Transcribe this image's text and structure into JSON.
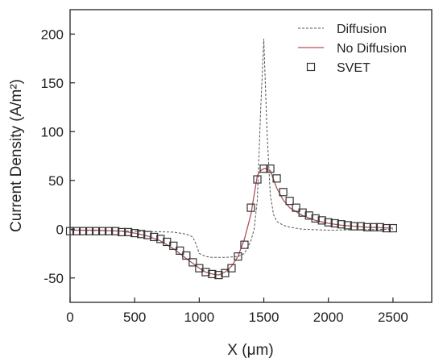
{
  "chart_data": {
    "type": "line",
    "xlabel": "X (μm)",
    "ylabel": "Current Density (A/m²)",
    "xlim": [
      0,
      2800
    ],
    "ylim": [
      -75,
      225
    ],
    "xticks": [
      0,
      500,
      1000,
      1500,
      2000,
      2500
    ],
    "yticks": [
      -50,
      0,
      50,
      100,
      150,
      200
    ],
    "legend_position": "top-right",
    "colors": {
      "diffusion": "#555555",
      "no_diffusion": "#b0525a",
      "svet": "#333333"
    },
    "series": [
      {
        "name": "Diffusion",
        "style": "dashed",
        "x": [
          0,
          500,
          800,
          900,
          950,
          975,
          1000,
          1050,
          1100,
          1200,
          1300,
          1350,
          1400,
          1425,
          1450,
          1475,
          1500,
          1525,
          1550,
          1575,
          1600,
          1650,
          1700,
          1800,
          2000,
          2500
        ],
        "y": [
          -1,
          -2,
          -3,
          -5,
          -8,
          -15,
          -25,
          -28,
          -29,
          -29,
          -28,
          -25,
          -12,
          0,
          30,
          120,
          195,
          100,
          35,
          15,
          8,
          4,
          2,
          0,
          -1,
          0
        ]
      },
      {
        "name": "No Diffusion",
        "style": "solid",
        "x": [
          0,
          100,
          200,
          300,
          400,
          500,
          600,
          700,
          800,
          900,
          1000,
          1050,
          1100,
          1150,
          1200,
          1250,
          1300,
          1350,
          1400,
          1425,
          1450,
          1475,
          1500,
          1525,
          1550,
          1600,
          1650,
          1700,
          1800,
          1900,
          2000,
          2100,
          2200,
          2300,
          2400,
          2500
        ],
        "y": [
          -1,
          -1,
          -1,
          -1.5,
          -2,
          -4,
          -7,
          -12,
          -20,
          -30,
          -40,
          -44,
          -46,
          -47,
          -44,
          -38,
          -28,
          -10,
          15,
          35,
          55,
          60,
          62,
          62,
          60,
          42,
          30,
          22,
          14,
          9,
          6,
          4,
          3,
          2,
          1.5,
          1
        ]
      },
      {
        "name": "SVET",
        "style": "markers",
        "x": [
          0,
          50,
          100,
          150,
          200,
          250,
          300,
          350,
          400,
          450,
          500,
          550,
          600,
          650,
          700,
          750,
          800,
          850,
          900,
          950,
          1000,
          1050,
          1100,
          1150,
          1200,
          1250,
          1300,
          1350,
          1400,
          1450,
          1500,
          1550,
          1600,
          1650,
          1700,
          1750,
          1800,
          1850,
          1900,
          1950,
          2000,
          2050,
          2100,
          2150,
          2200,
          2250,
          2300,
          2350,
          2400,
          2450,
          2500
        ],
        "y": [
          -2,
          -2,
          -2,
          -2,
          -2,
          -2,
          -2,
          -2,
          -3,
          -3,
          -4,
          -5,
          -6,
          -8,
          -10,
          -13,
          -17,
          -22,
          -27,
          -34,
          -40,
          -44,
          -46,
          -47,
          -45,
          -40,
          -28,
          -16,
          22,
          51,
          62,
          62,
          52,
          38,
          29,
          22,
          17,
          14,
          11,
          9,
          7,
          6,
          5,
          4,
          3,
          3,
          2,
          2,
          2,
          1,
          1
        ]
      }
    ]
  }
}
